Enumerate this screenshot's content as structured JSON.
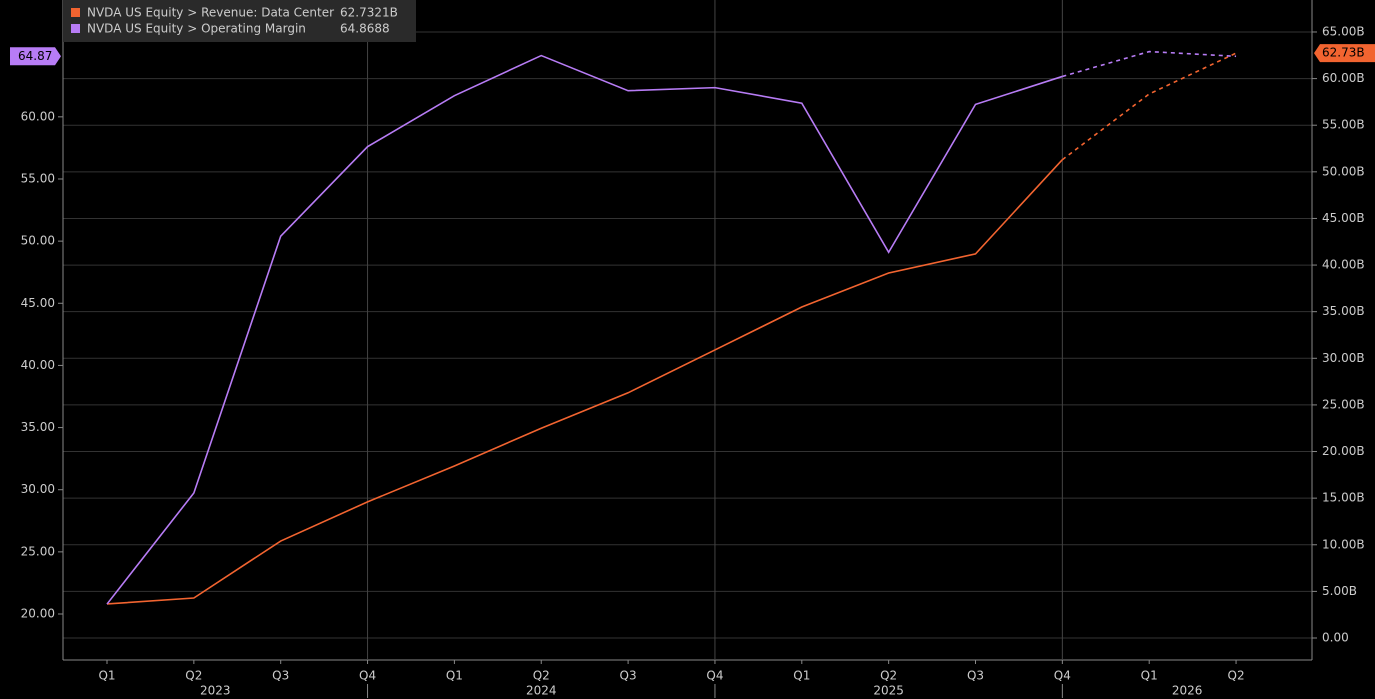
{
  "chart_data": {
    "type": "line",
    "categories": [
      "Q1",
      "Q2",
      "Q3",
      "Q4",
      "Q1",
      "Q2",
      "Q3",
      "Q4",
      "Q1",
      "Q2",
      "Q3",
      "Q4",
      "Q1",
      "Q2"
    ],
    "year_labels": [
      "2023",
      "2024",
      "2025",
      "2026"
    ],
    "series": [
      {
        "name": "NVDA US Equity > Revenue: Data Center",
        "legend_value": "62.7321B",
        "end_label": "62.73B",
        "color": "#f26430",
        "axis": "y2",
        "values": [
          3.65,
          4.29,
          10.4,
          14.6,
          18.45,
          22.5,
          26.3,
          30.9,
          35.5,
          39.15,
          41.2,
          51.3,
          58.35,
          62.73
        ]
      },
      {
        "name": "NVDA US Equity > Operating Margin",
        "legend_value": "64.8688",
        "end_label": "64.87",
        "color": "#b77cf5",
        "axis": "y",
        "values": [
          20.8,
          29.74,
          50.4,
          57.6,
          61.7,
          64.93,
          62.1,
          62.35,
          61.1,
          49.1,
          61.0,
          63.25,
          65.25,
          64.87
        ]
      }
    ],
    "dashed_from_index": 11,
    "ylim": [
      16.3,
      69.4
    ],
    "yticks": [
      {
        "value": 20,
        "label": "20.00"
      },
      {
        "value": 25,
        "label": "25.00"
      },
      {
        "value": 30,
        "label": "30.00"
      },
      {
        "value": 35,
        "label": "35.00"
      },
      {
        "value": 40,
        "label": "40.00"
      },
      {
        "value": 45,
        "label": "45.00"
      },
      {
        "value": 50,
        "label": "50.00"
      },
      {
        "value": 55,
        "label": "55.00"
      },
      {
        "value": 60,
        "label": "60.00"
      }
    ],
    "y2lim": [
      -2.36,
      68.43
    ],
    "y2ticks": [
      {
        "value": 0,
        "label": "0.00"
      },
      {
        "value": 5,
        "label": "5.00B"
      },
      {
        "value": 10,
        "label": "10.00B"
      },
      {
        "value": 15,
        "label": "15.00B"
      },
      {
        "value": 20,
        "label": "20.00B"
      },
      {
        "value": 25,
        "label": "25.00B"
      },
      {
        "value": 30,
        "label": "30.00B"
      },
      {
        "value": 35,
        "label": "35.00B"
      },
      {
        "value": 40,
        "label": "40.00B"
      },
      {
        "value": 45,
        "label": "45.00B"
      },
      {
        "value": 50,
        "label": "50.00B"
      },
      {
        "value": 55,
        "label": "55.00B"
      },
      {
        "value": 60,
        "label": "60.00B"
      },
      {
        "value": 65,
        "label": "65.00B"
      }
    ],
    "grid": true
  }
}
